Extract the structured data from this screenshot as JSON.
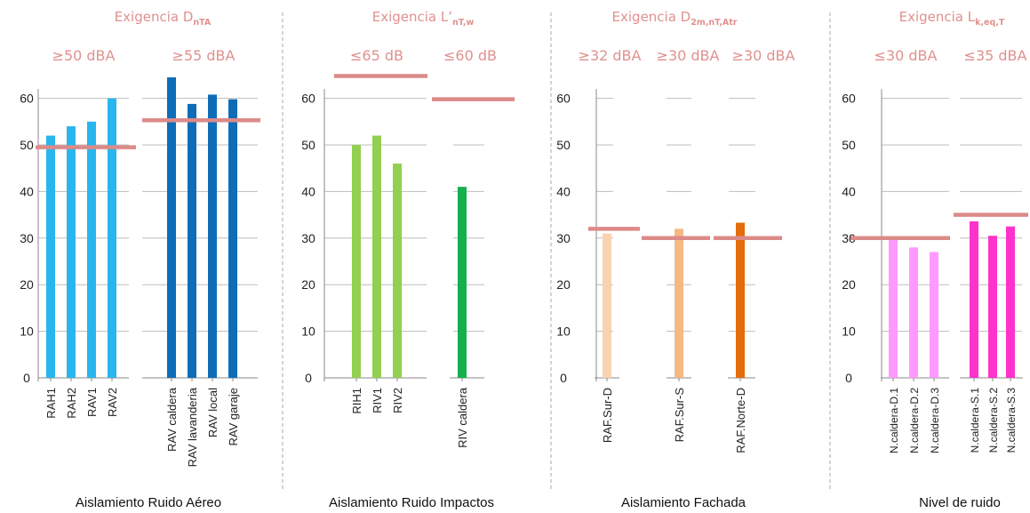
{
  "chart_data": [
    {
      "type": "bar",
      "title_prefix": "Exigencia D",
      "title_sub": "nTA",
      "panel_label": "Aislamiento Ruido Aéreo",
      "ylim": [
        0,
        65
      ],
      "yticks": [
        0,
        10,
        20,
        30,
        40,
        50,
        60
      ],
      "groups": [
        {
          "requirement": "≥50 dBA",
          "threshold": 49.5,
          "color": "#29b6ee",
          "categories": [
            "RAH1",
            "RAH2",
            "RAV1",
            "RAV2"
          ],
          "values": [
            52,
            54,
            55,
            60
          ]
        },
        {
          "requirement": "≥55 dBA",
          "threshold": 55.3,
          "color": "#0f6db7",
          "categories": [
            "RAV caldera",
            "RAV lavanderia",
            "RAV local",
            "RAV garaje"
          ],
          "values": [
            64.5,
            58.8,
            60.8,
            59.8
          ]
        }
      ]
    },
    {
      "type": "bar",
      "title_prefix": "Exigencia L’",
      "title_sub": "nT,w",
      "panel_label": "Aislamiento Ruido Impactos",
      "ylim": [
        0,
        65
      ],
      "yticks": [
        0,
        10,
        20,
        30,
        40,
        50,
        60
      ],
      "groups": [
        {
          "requirement": "≤65 dB",
          "threshold": 64.8,
          "color": "#92d050",
          "categories": [
            "RIH1",
            "RIV1",
            "RIV2"
          ],
          "values": [
            50,
            52,
            46
          ]
        },
        {
          "requirement": "≤60 dB",
          "threshold": 59.8,
          "color": "#14b04c",
          "categories": [
            "RIV caldera"
          ],
          "values": [
            41
          ]
        }
      ]
    },
    {
      "type": "bar",
      "title_prefix": "Exigencia D",
      "title_sub": "2m,nT,Atr",
      "panel_label": "Aislamiento Fachada",
      "ylim": [
        0,
        65
      ],
      "yticks": [
        0,
        10,
        20,
        30,
        40,
        50,
        60
      ],
      "groups": [
        {
          "requirement": "≥32 dBA",
          "threshold": 32,
          "color": "#f8d3b0",
          "categories": [
            "RAF.Sur-D"
          ],
          "values": [
            31
          ]
        },
        {
          "requirement": "≥30 dBA",
          "threshold": 30,
          "color": "#f5b984",
          "categories": [
            "RAF.Sur-S"
          ],
          "values": [
            32
          ]
        },
        {
          "requirement": "≥30 dBA",
          "threshold": 30,
          "color": "#e46c0a",
          "categories": [
            "RAF.Norte-D"
          ],
          "values": [
            33.3
          ]
        }
      ]
    },
    {
      "type": "bar",
      "title_prefix": "Exigencia L",
      "title_sub": "k,eq,T",
      "panel_label": "Nivel de ruido",
      "ylim": [
        0,
        65
      ],
      "yticks": [
        0,
        10,
        20,
        30,
        40,
        50,
        60
      ],
      "groups": [
        {
          "requirement": "≤30 dBA",
          "threshold": 30,
          "color": "#ff99ff",
          "categories": [
            "N.caldera-D.1",
            "N.caldera-D.2",
            "N.caldera-D.3"
          ],
          "values": [
            29.8,
            28,
            27
          ]
        },
        {
          "requirement": "≤35 dBA",
          "threshold": 35,
          "color": "#ff33cc",
          "categories": [
            "N.caldera-S.1",
            "N.caldera-S.2",
            "N.caldera-S.3"
          ],
          "values": [
            33.6,
            30.5,
            32.5
          ]
        }
      ]
    }
  ],
  "style": {
    "threshold_color": "#dc8b88",
    "grid_color": "#bdbdbd",
    "divider_color": "#a8a8a8"
  }
}
